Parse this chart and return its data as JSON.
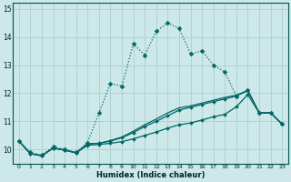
{
  "xlabel": "Humidex (Indice chaleur)",
  "ylabel": "",
  "xlim": [
    -0.5,
    23.5
  ],
  "ylim": [
    9.5,
    15.2
  ],
  "yticks": [
    10,
    11,
    12,
    13,
    14,
    15
  ],
  "xticks": [
    0,
    1,
    2,
    3,
    4,
    5,
    6,
    7,
    8,
    9,
    10,
    11,
    12,
    13,
    14,
    15,
    16,
    17,
    18,
    19,
    20,
    21,
    22,
    23
  ],
  "bg_color": "#cce8e8",
  "grid_color": "#aad0d0",
  "line_color": "#006666",
  "lines": [
    {
      "x": [
        0,
        1,
        2,
        3,
        4,
        5,
        6,
        7,
        8,
        9,
        10,
        11,
        12,
        13,
        14,
        15,
        16,
        17,
        18,
        19,
        20,
        21,
        22,
        23
      ],
      "y": [
        10.3,
        9.9,
        9.8,
        10.1,
        10.0,
        9.9,
        10.25,
        11.3,
        12.35,
        12.25,
        13.75,
        13.35,
        14.2,
        14.5,
        14.3,
        13.4,
        13.5,
        13.0,
        12.75,
        11.9,
        12.1,
        11.3,
        11.3,
        10.9
      ],
      "style": "dotted",
      "marker": true,
      "markersize": 2.5
    },
    {
      "x": [
        0,
        1,
        2,
        3,
        4,
        5,
        6,
        7,
        8,
        9,
        10,
        11,
        12,
        13,
        14,
        15,
        16,
        17,
        18,
        19,
        20,
        21,
        22,
        23
      ],
      "y": [
        10.3,
        9.85,
        9.78,
        10.05,
        9.98,
        9.88,
        10.15,
        10.18,
        10.22,
        10.28,
        10.38,
        10.5,
        10.62,
        10.76,
        10.88,
        10.94,
        11.05,
        11.16,
        11.25,
        11.52,
        11.95,
        11.3,
        11.3,
        10.9
      ],
      "style": "solid",
      "marker": true,
      "markersize": 2.0
    },
    {
      "x": [
        0,
        1,
        2,
        3,
        4,
        5,
        6,
        7,
        8,
        9,
        10,
        11,
        12,
        13,
        14,
        15,
        16,
        17,
        18,
        19,
        20,
        21,
        22,
        23
      ],
      "y": [
        10.3,
        9.85,
        9.78,
        10.05,
        9.98,
        9.88,
        10.2,
        10.22,
        10.3,
        10.42,
        10.6,
        10.82,
        11.0,
        11.2,
        11.4,
        11.5,
        11.6,
        11.7,
        11.8,
        11.9,
        12.1,
        11.3,
        11.3,
        10.9
      ],
      "style": "solid",
      "marker": true,
      "markersize": 2.0
    },
    {
      "x": [
        0,
        1,
        2,
        3,
        4,
        5,
        6,
        7,
        8,
        9,
        10,
        11,
        12,
        13,
        14,
        15,
        16,
        17,
        18,
        19,
        20,
        21,
        22,
        23
      ],
      "y": [
        10.3,
        9.85,
        9.78,
        10.05,
        9.98,
        9.88,
        10.2,
        10.22,
        10.32,
        10.44,
        10.65,
        10.88,
        11.08,
        11.3,
        11.48,
        11.55,
        11.65,
        11.75,
        11.85,
        11.93,
        12.1,
        11.3,
        11.3,
        10.9
      ],
      "style": "solid",
      "marker": false,
      "markersize": 0
    }
  ]
}
